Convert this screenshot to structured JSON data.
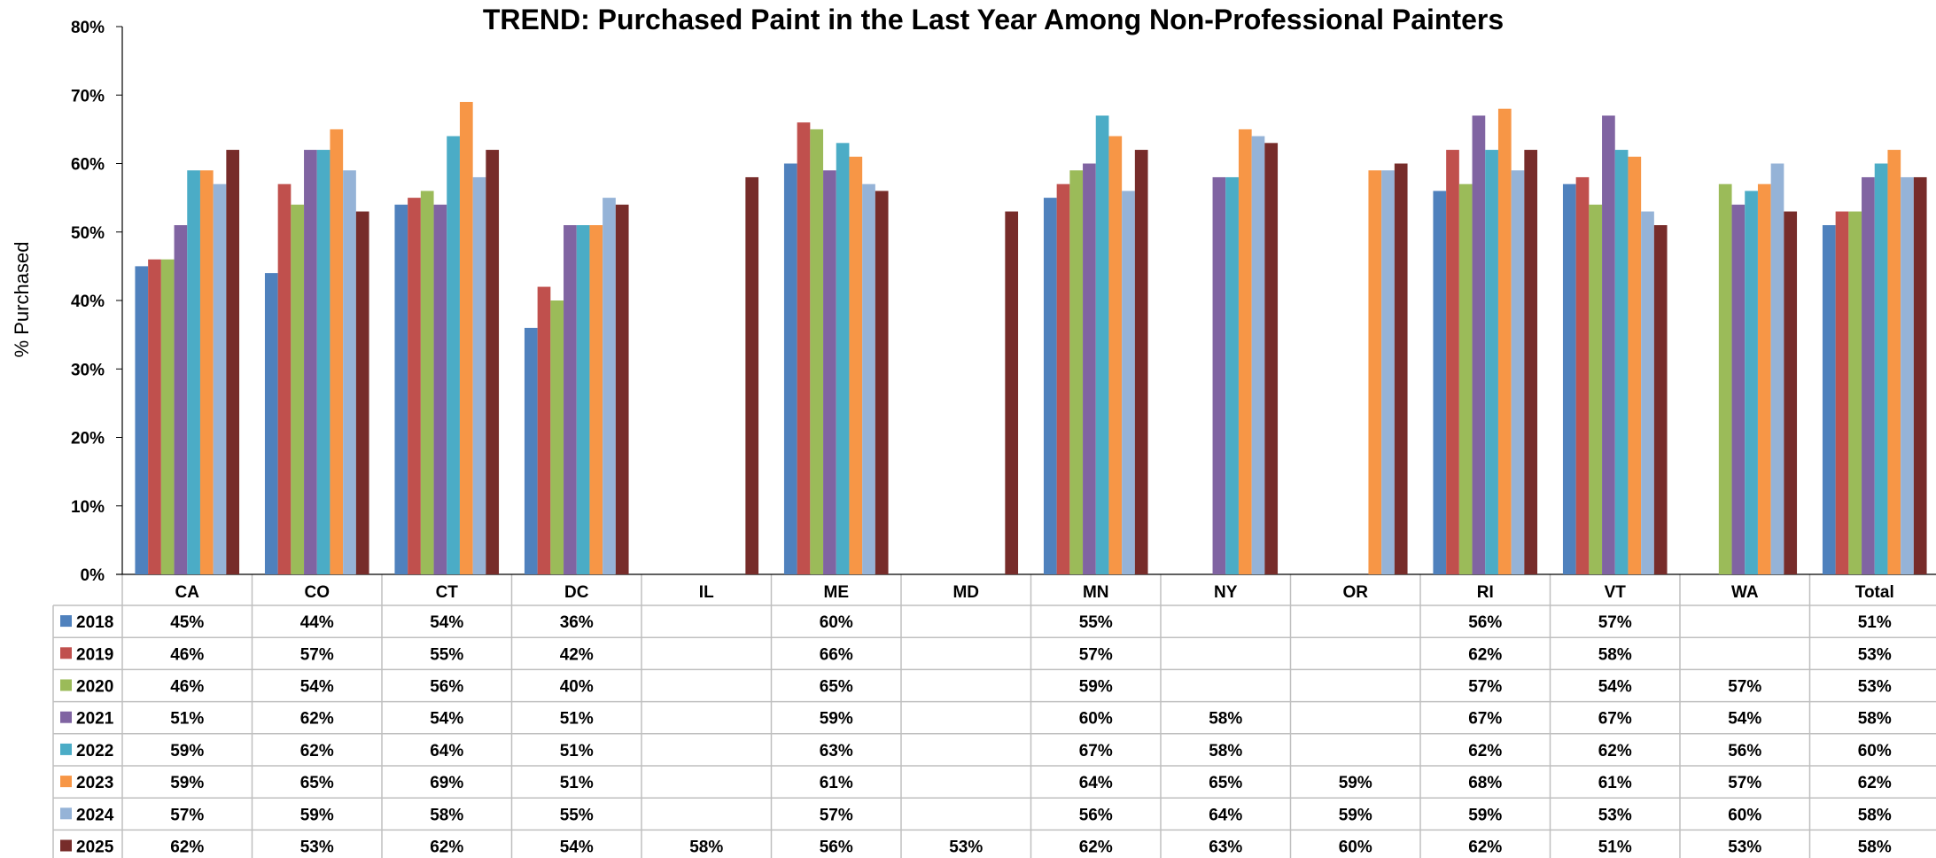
{
  "chart_data": {
    "type": "bar",
    "title": "TREND: Purchased Paint in the Last Year Among Non-Professional Painters",
    "ylabel": "% Purchased",
    "xlabel": "",
    "ylim": [
      0,
      80
    ],
    "yticks": [
      "0%",
      "10%",
      "20%",
      "30%",
      "40%",
      "50%",
      "60%",
      "70%",
      "80%"
    ],
    "grid": false,
    "legend": "data-table-left",
    "categories": [
      "CA",
      "CO",
      "CT",
      "DC",
      "IL",
      "ME",
      "MD",
      "MN",
      "NY",
      "OR",
      "RI",
      "VT",
      "WA",
      "Total"
    ],
    "series": [
      {
        "name": "2018",
        "color": "#4F81BD",
        "values": [
          45,
          44,
          54,
          36,
          null,
          60,
          null,
          55,
          null,
          null,
          56,
          57,
          null,
          51
        ]
      },
      {
        "name": "2019",
        "color": "#C0504D",
        "values": [
          46,
          57,
          55,
          42,
          null,
          66,
          null,
          57,
          null,
          null,
          62,
          58,
          null,
          53
        ]
      },
      {
        "name": "2020",
        "color": "#9BBB59",
        "values": [
          46,
          54,
          56,
          40,
          null,
          65,
          null,
          59,
          null,
          null,
          57,
          54,
          57,
          53
        ]
      },
      {
        "name": "2021",
        "color": "#8064A2",
        "values": [
          51,
          62,
          54,
          51,
          null,
          59,
          null,
          60,
          58,
          null,
          67,
          67,
          54,
          58
        ]
      },
      {
        "name": "2022",
        "color": "#4BACC6",
        "values": [
          59,
          62,
          64,
          51,
          null,
          63,
          null,
          67,
          58,
          null,
          62,
          62,
          56,
          60
        ]
      },
      {
        "name": "2023",
        "color": "#F79646",
        "values": [
          59,
          65,
          69,
          51,
          null,
          61,
          null,
          64,
          65,
          59,
          68,
          61,
          57,
          62
        ]
      },
      {
        "name": "2024",
        "color": "#95B3D7",
        "values": [
          57,
          59,
          58,
          55,
          null,
          57,
          null,
          56,
          64,
          59,
          59,
          53,
          60,
          58
        ]
      },
      {
        "name": "2025",
        "color": "#772C2A",
        "values": [
          62,
          53,
          62,
          54,
          58,
          56,
          53,
          62,
          63,
          60,
          62,
          51,
          53,
          58
        ]
      }
    ],
    "table_cells": [
      [
        "45%",
        "44%",
        "54%",
        "36%",
        "",
        "60%",
        "",
        "55%",
        "",
        "",
        "56%",
        "57%",
        "",
        "51%"
      ],
      [
        "46%",
        "57%",
        "55%",
        "42%",
        "",
        "66%",
        "",
        "57%",
        "",
        "",
        "62%",
        "58%",
        "",
        "53%"
      ],
      [
        "46%",
        "54%",
        "56%",
        "40%",
        "",
        "65%",
        "",
        "59%",
        "",
        "",
        "57%",
        "54%",
        "57%",
        "53%"
      ],
      [
        "51%",
        "62%",
        "54%",
        "51%",
        "",
        "59%",
        "",
        "60%",
        "58%",
        "",
        "67%",
        "67%",
        "54%",
        "58%"
      ],
      [
        "59%",
        "62%",
        "64%",
        "51%",
        "",
        "63%",
        "",
        "67%",
        "58%",
        "",
        "62%",
        "62%",
        "56%",
        "60%"
      ],
      [
        "59%",
        "65%",
        "69%",
        "51%",
        "",
        "61%",
        "",
        "64%",
        "65%",
        "59%",
        "68%",
        "61%",
        "57%",
        "62%"
      ],
      [
        "57%",
        "59%",
        "58%",
        "55%",
        "",
        "57%",
        "",
        "56%",
        "64%",
        "59%",
        "59%",
        "53%",
        "60%",
        "58%"
      ],
      [
        "62%",
        "53%",
        "62%",
        "54%",
        "58%",
        "56%",
        "53%",
        "62%",
        "63%",
        "60%",
        "62%",
        "51%",
        "53%",
        "58%"
      ]
    ]
  }
}
